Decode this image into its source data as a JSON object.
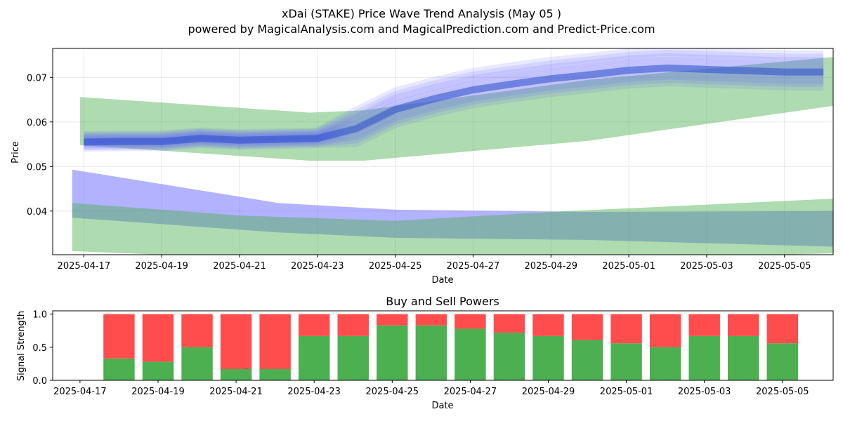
{
  "chart_data": [
    {
      "type": "area",
      "title": "xDai (STAKE) Price Wave Trend Analysis (May 05 )",
      "subtitle": "powered by MagicalAnalysis.com and MagicalPrediction.com and Predict-Price.com",
      "xlabel": "Date",
      "ylabel": "Price",
      "ylim": [
        0.0302,
        0.0765
      ],
      "grid": true,
      "x_ticks": [
        "2025-04-17",
        "2025-04-19",
        "2025-04-21",
        "2025-04-23",
        "2025-04-25",
        "2025-04-27",
        "2025-04-29",
        "2025-05-01",
        "2025-05-03",
        "2025-05-05"
      ],
      "y_ticks": [
        0.04,
        0.05,
        0.06,
        0.07
      ],
      "y_tick_labels": [
        "0.04",
        "0.05",
        "0.06",
        "0.07"
      ],
      "x_day_range": [
        -0.8,
        19.25
      ],
      "price_line": {
        "days": [
          0,
          1,
          2,
          3,
          4,
          5,
          6,
          7,
          8,
          9,
          10,
          11,
          12,
          13,
          14,
          15,
          16,
          17,
          18,
          19
        ],
        "values": [
          0.0555,
          0.0556,
          0.0556,
          0.0563,
          0.0559,
          0.0561,
          0.0563,
          0.0585,
          0.0628,
          0.0652,
          0.0672,
          0.0685,
          0.0697,
          0.0706,
          0.0716,
          0.0721,
          0.0718,
          0.0715,
          0.0712,
          0.0712
        ]
      },
      "wave_bands": [
        {
          "name": "green-upper",
          "color": "#4caf50",
          "days": [
            -0.1,
            5.8,
            7.2,
            13,
            19.4
          ],
          "upper": [
            0.0656,
            0.0621,
            0.0626,
            0.0695,
            0.0747
          ],
          "lower": [
            0.0548,
            0.0513,
            0.0513,
            0.0558,
            0.0638
          ]
        },
        {
          "name": "blue-lower",
          "color": "#6666ff",
          "days": [
            -0.3,
            5,
            8,
            13,
            19.3
          ],
          "upper": [
            0.0493,
            0.0418,
            0.0403,
            0.0398,
            0.04
          ],
          "lower": [
            0.0385,
            0.0352,
            0.034,
            0.0335,
            0.032
          ]
        },
        {
          "name": "green-lower",
          "color": "#4caf50",
          "days": [
            -0.3,
            4,
            8,
            12,
            19.3
          ],
          "upper": [
            0.0418,
            0.039,
            0.0378,
            0.0398,
            0.0428
          ],
          "lower": [
            0.031,
            0.0295,
            0.029,
            0.029,
            0.0305
          ]
        }
      ]
    },
    {
      "type": "bar",
      "title": "Buy and Sell Powers",
      "xlabel": "Date",
      "ylabel": "Signal Strength",
      "ylim": [
        0,
        1.05
      ],
      "y_ticks": [
        0,
        0.5,
        1
      ],
      "y_tick_labels": [
        "0.0",
        "0.5",
        "1.0"
      ],
      "x_ticks": [
        "2025-04-17",
        "2025-04-19",
        "2025-04-21",
        "2025-04-23",
        "2025-04-25",
        "2025-04-27",
        "2025-04-29",
        "2025-05-01",
        "2025-05-03",
        "2025-05-05"
      ],
      "x_day_range": [
        -0.7,
        19.3
      ],
      "bar_days": [
        1,
        2,
        3,
        4,
        5,
        6,
        7,
        8,
        9,
        10,
        11,
        12,
        13,
        14,
        15,
        16,
        17,
        18
      ],
      "series": [
        {
          "name": "Buy",
          "color": "#4caf50",
          "values": [
            0.33,
            0.28,
            0.5,
            0.17,
            0.17,
            0.67,
            0.67,
            0.83,
            0.83,
            0.78,
            0.72,
            0.67,
            0.61,
            0.56,
            0.5,
            0.67,
            0.67,
            0.56
          ]
        },
        {
          "name": "Sell",
          "color": "#ff4d4d",
          "values": [
            0.67,
            0.72,
            0.5,
            0.83,
            0.83,
            0.33,
            0.33,
            0.17,
            0.17,
            0.22,
            0.28,
            0.33,
            0.39,
            0.44,
            0.5,
            0.33,
            0.33,
            0.44
          ]
        }
      ]
    }
  ]
}
